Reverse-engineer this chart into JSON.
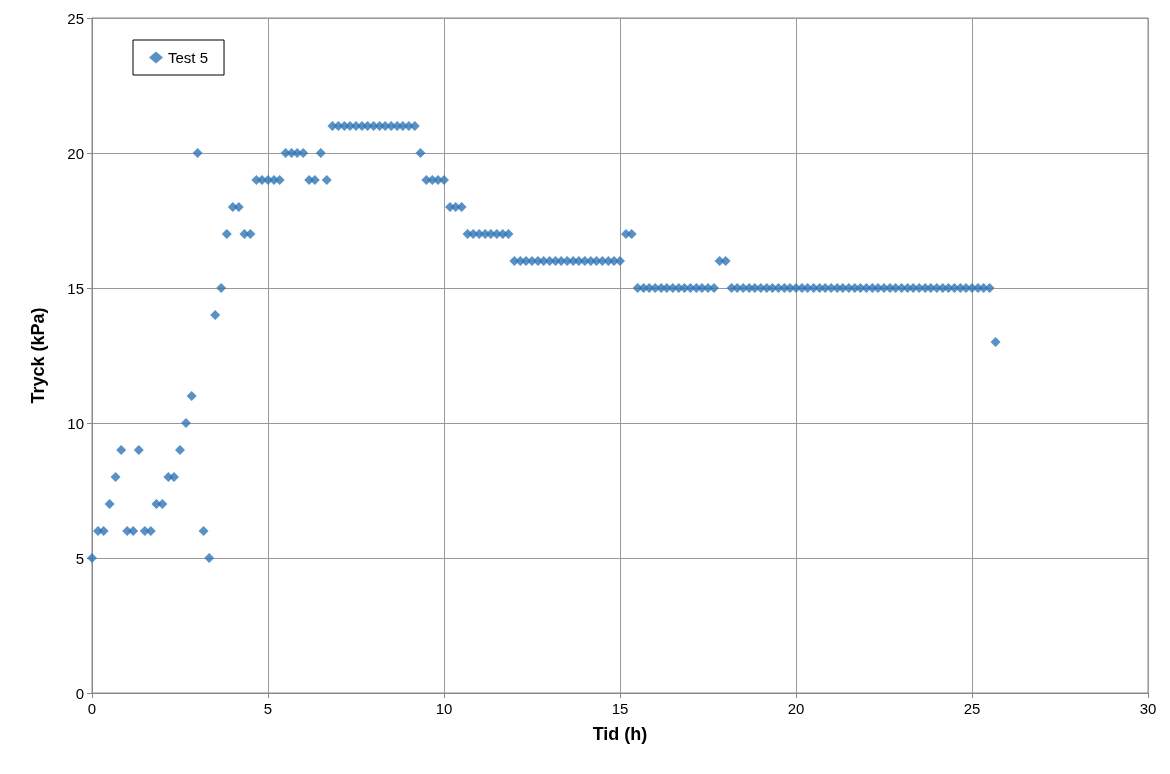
{
  "chart_data": {
    "type": "scatter",
    "xlabel": "Tid (h)",
    "ylabel": "Tryck (kPa)",
    "xlim": [
      0,
      30
    ],
    "xticks": [
      0,
      5,
      10,
      15,
      20,
      25,
      30
    ],
    "ylim": [
      0,
      25
    ],
    "yticks": [
      0,
      5,
      10,
      15,
      20,
      25
    ],
    "grid": true,
    "legend": "top left",
    "marker": "diamond",
    "series": [
      {
        "name": "Test 5",
        "color": "#2f75b5",
        "x": [
          0,
          0.17,
          0.33,
          0.5,
          0.67,
          0.83,
          1,
          1.17,
          1.33,
          1.5,
          1.67,
          1.83,
          2,
          2.17,
          2.33,
          2.5,
          2.67,
          2.83,
          3,
          3.17,
          3.33,
          3.5,
          3.67,
          3.83,
          4,
          4.17,
          4.33,
          4.5,
          4.67,
          4.83,
          5,
          5.17,
          5.33,
          5.5,
          5.67,
          5.83,
          6,
          6.17,
          6.33,
          6.5,
          6.67,
          6.83,
          7,
          7.17,
          7.33,
          7.5,
          7.67,
          7.83,
          8,
          8.17,
          8.33,
          8.5,
          8.67,
          8.83,
          9,
          9.17,
          9.33,
          9.5,
          9.67,
          9.83,
          10,
          10.17,
          10.33,
          10.5,
          10.67,
          10.83,
          11,
          11.17,
          11.33,
          11.5,
          11.67,
          11.83,
          12,
          12.17,
          12.33,
          12.5,
          12.67,
          12.83,
          13,
          13.17,
          13.33,
          13.5,
          13.67,
          13.83,
          14,
          14.17,
          14.33,
          14.5,
          14.67,
          14.83,
          15,
          15.17,
          15.33,
          15.5,
          15.67,
          15.83,
          16,
          16.17,
          16.33,
          16.5,
          16.67,
          16.83,
          17,
          17.17,
          17.33,
          17.5,
          17.67,
          17.83,
          18,
          18.17,
          18.33,
          18.5,
          18.67,
          18.83,
          19,
          19.17,
          19.33,
          19.5,
          19.67,
          19.83,
          20,
          20.17,
          20.33,
          20.5,
          20.67,
          20.83,
          21,
          21.17,
          21.33,
          21.5,
          21.67,
          21.83,
          22,
          22.17,
          22.33,
          22.5,
          22.67,
          22.83,
          23,
          23.17,
          23.33,
          23.5,
          23.67,
          23.83,
          24,
          24.17,
          24.33,
          24.5,
          24.67,
          24.83,
          25,
          25.17,
          25.33,
          25.5,
          25.67
        ],
        "values": [
          5,
          6,
          6,
          7,
          8,
          9,
          6,
          6,
          9,
          6,
          6,
          7,
          7,
          8,
          8,
          9,
          10,
          11,
          20,
          6,
          5,
          14,
          15,
          17,
          18,
          18,
          17,
          17,
          19,
          19,
          19,
          19,
          19,
          20,
          20,
          20,
          20,
          19,
          19,
          20,
          19,
          21,
          21,
          21,
          21,
          21,
          21,
          21,
          21,
          21,
          21,
          21,
          21,
          21,
          21,
          21,
          20,
          19,
          19,
          19,
          19,
          18,
          18,
          18,
          17,
          17,
          17,
          17,
          17,
          17,
          17,
          17,
          16,
          16,
          16,
          16,
          16,
          16,
          16,
          16,
          16,
          16,
          16,
          16,
          16,
          16,
          16,
          16,
          16,
          16,
          16,
          17,
          17,
          15,
          15,
          15,
          15,
          15,
          15,
          15,
          15,
          15,
          15,
          15,
          15,
          15,
          15,
          16,
          16,
          15,
          15,
          15,
          15,
          15,
          15,
          15,
          15,
          15,
          15,
          15,
          15,
          15,
          15,
          15,
          15,
          15,
          15,
          15,
          15,
          15,
          15,
          15,
          15,
          15,
          15,
          15,
          15,
          15,
          15,
          15,
          15,
          15,
          15,
          15,
          15,
          15,
          15,
          15,
          15,
          15,
          15,
          15,
          15,
          15,
          13
        ]
      }
    ]
  }
}
